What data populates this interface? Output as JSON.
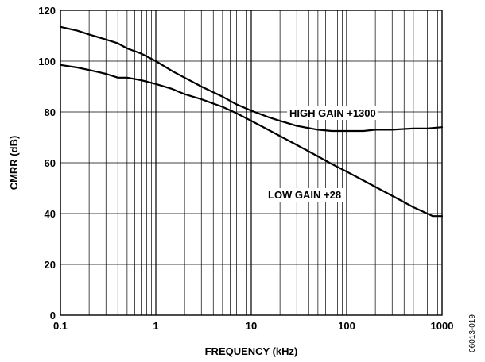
{
  "chart_data": {
    "type": "line",
    "xlabel": "FREQUENCY (kHz)",
    "ylabel": "CMRR (dB)",
    "x_scale": "log",
    "xlim": [
      0.1,
      1000
    ],
    "ylim": [
      0,
      120
    ],
    "x_ticks": [
      0.1,
      1,
      10,
      100,
      1000
    ],
    "x_tick_labels": [
      "0.1",
      "1",
      "10",
      "100",
      "1000"
    ],
    "y_ticks": [
      0,
      20,
      40,
      60,
      80,
      100,
      120
    ],
    "y_tick_labels": [
      "0",
      "20",
      "40",
      "60",
      "80",
      "100",
      "120"
    ],
    "grid": true,
    "series": [
      {
        "name": "HIGH GAIN +1300",
        "x": [
          0.1,
          0.15,
          0.2,
          0.3,
          0.4,
          0.5,
          0.7,
          1,
          1.5,
          2,
          3,
          5,
          7,
          10,
          15,
          20,
          30,
          50,
          70,
          100,
          150,
          200,
          300,
          500,
          700,
          1000
        ],
        "y": [
          113.5,
          112,
          110.5,
          108.5,
          107,
          105,
          103,
          100,
          96,
          93.5,
          90,
          86,
          83,
          80.5,
          78,
          76.5,
          74.5,
          73,
          72.5,
          72.5,
          72.5,
          73,
          73,
          73.5,
          73.5,
          74
        ]
      },
      {
        "name": "LOW GAIN +28",
        "x": [
          0.1,
          0.15,
          0.2,
          0.3,
          0.4,
          0.5,
          0.7,
          1,
          1.5,
          2,
          3,
          5,
          7,
          10,
          15,
          20,
          30,
          50,
          70,
          100,
          150,
          200,
          300,
          500,
          700,
          800,
          1000
        ],
        "y": [
          98.5,
          97.5,
          96.5,
          95,
          93.5,
          93.5,
          92.5,
          91,
          89,
          87,
          85,
          82,
          79.5,
          76.5,
          73,
          70.5,
          67,
          62.5,
          59.5,
          56.5,
          53,
          50.5,
          47,
          42.5,
          40,
          39,
          39
        ]
      }
    ],
    "annotations": [
      "HIGH GAIN +1300",
      "LOW GAIN +28"
    ]
  },
  "figure_id": "06013-019"
}
